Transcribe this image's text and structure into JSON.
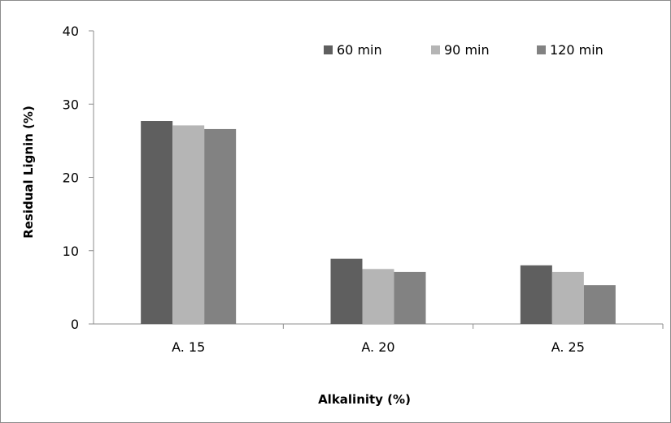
{
  "chart_data": {
    "type": "bar",
    "title": "",
    "xlabel": "Alkalinity (%)",
    "ylabel": "Residual Lignin (%)",
    "ylim": [
      0,
      40
    ],
    "yticks": [
      "0",
      "10",
      "20",
      "30",
      "40"
    ],
    "categories": [
      "A. 15",
      "A. 20",
      "A. 25"
    ],
    "series": [
      {
        "name": "60 min",
        "color": "#5f5f5f",
        "values": [
          27.7,
          8.9,
          8.0
        ]
      },
      {
        "name": "90 min",
        "color": "#b5b5b5",
        "values": [
          27.1,
          7.5,
          7.1
        ]
      },
      {
        "name": "120 min",
        "color": "#828282",
        "values": [
          26.6,
          7.1,
          5.3
        ]
      }
    ],
    "grid": false,
    "legend_position": "top-right"
  }
}
